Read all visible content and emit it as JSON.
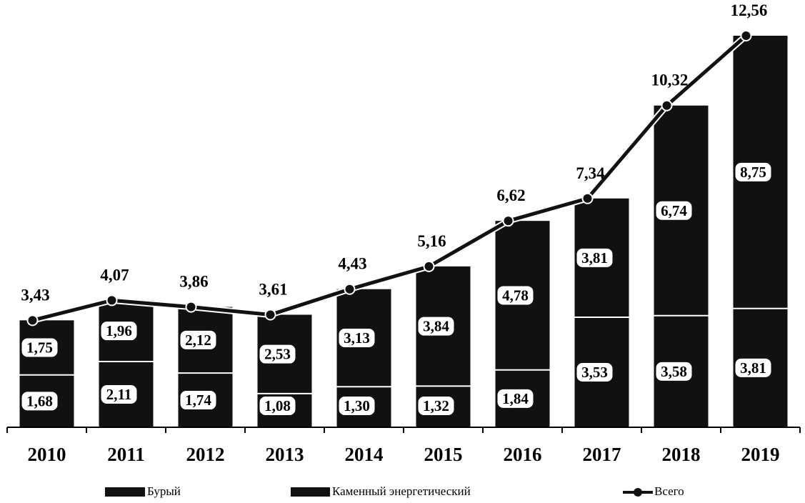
{
  "chart_data": {
    "type": "bar",
    "stacked": true,
    "categories": [
      "2010",
      "2011",
      "2012",
      "2013",
      "2014",
      "2015",
      "2016",
      "2017",
      "2018",
      "2019"
    ],
    "series": [
      {
        "name": "Бурый",
        "type": "bar",
        "values": [
          1.68,
          2.11,
          1.74,
          1.08,
          1.3,
          1.32,
          1.84,
          3.53,
          3.58,
          3.81
        ],
        "labels": [
          "1,68",
          "2,11",
          "1,74",
          "1,08",
          "1,30",
          "1,32",
          "1,84",
          "3,53",
          "3,58",
          "3,81"
        ]
      },
      {
        "name": "Каменный энергетический",
        "type": "bar",
        "values": [
          1.75,
          1.96,
          2.12,
          2.53,
          3.13,
          3.84,
          4.78,
          3.81,
          6.74,
          8.75
        ],
        "labels": [
          "1,75",
          "1,96",
          "2,12",
          "2,53",
          "3,13",
          "3,84",
          "4,78",
          "3,81",
          "6,74",
          "8,75"
        ]
      },
      {
        "name": "Всего",
        "type": "line",
        "values": [
          3.43,
          4.07,
          3.86,
          3.61,
          4.43,
          5.16,
          6.62,
          7.34,
          10.32,
          12.56
        ],
        "labels": [
          "3,43",
          "4,07",
          "3,86",
          "3,61",
          "4,43",
          "5,16",
          "6,62",
          "7,34",
          "10,32",
          "12,56"
        ]
      }
    ],
    "ylim": [
      0,
      12.56
    ],
    "grid": false,
    "legend_position": "bottom",
    "colors": {
      "bars": "#111111",
      "line": "#111111",
      "label_bg": "#ffffff",
      "axis": "#000000"
    }
  }
}
